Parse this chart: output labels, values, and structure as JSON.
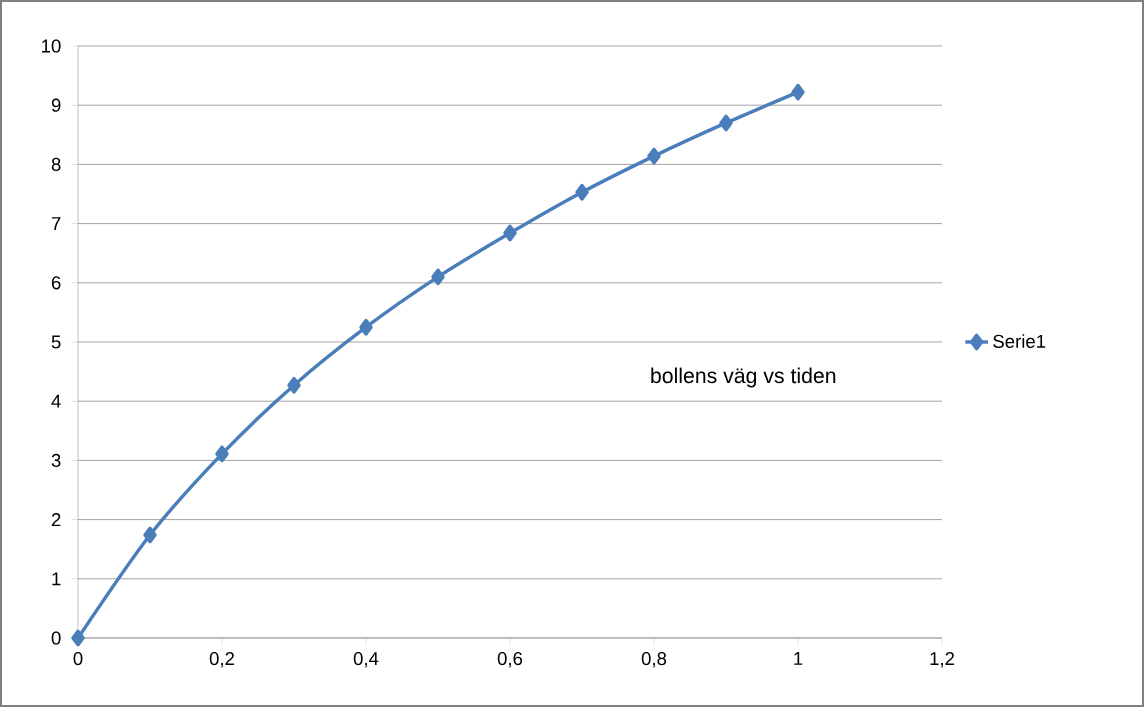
{
  "chart_data": {
    "type": "line",
    "x": [
      0,
      0.1,
      0.2,
      0.3,
      0.4,
      0.5,
      0.6,
      0.7,
      0.8,
      0.9,
      1
    ],
    "series": [
      {
        "name": "Serie1",
        "color": "#4a7ebb",
        "values": [
          0,
          1.74,
          3.11,
          4.27,
          5.25,
          6.1,
          6.84,
          7.53,
          8.14,
          8.7,
          9.22
        ]
      }
    ],
    "annotations": [
      "bollens väg vs tiden"
    ],
    "xlim": [
      0,
      1.2
    ],
    "ylim": [
      0,
      10
    ],
    "xticks": [
      0,
      {
        "value": 0.2,
        "label": "0,2"
      },
      {
        "value": 0.4,
        "label": "0,4"
      },
      {
        "value": 0.6,
        "label": "0,6"
      },
      {
        "value": 0.8,
        "label": "0,8"
      },
      1,
      {
        "value": 1.2,
        "label": "1,2"
      }
    ],
    "yticks": [
      0,
      1,
      2,
      3,
      4,
      5,
      6,
      7,
      8,
      9,
      10
    ],
    "grid": "y",
    "legend": "right",
    "marker": "diamond",
    "line_style": "solid"
  }
}
